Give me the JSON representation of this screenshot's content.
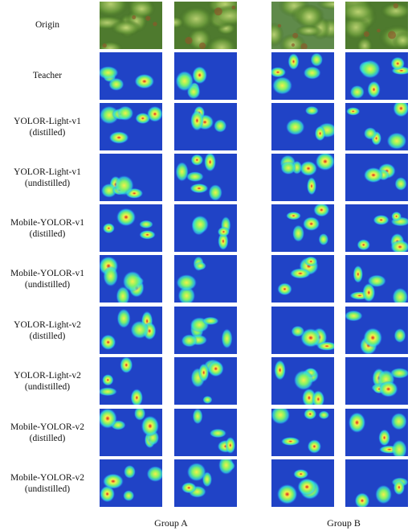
{
  "panels": {
    "a": "A",
    "b": "B"
  },
  "rows": [
    {
      "label_line1": "Origin",
      "label_line2": ""
    },
    {
      "label_line1": "Teacher",
      "label_line2": ""
    },
    {
      "label_line1": "YOLOR-Light-v1",
      "label_line2": "(distilled)"
    },
    {
      "label_line1": "YOLOR-Light-v1",
      "label_line2": "(undistilled)"
    },
    {
      "label_line1": "Mobile-YOLOR-v1",
      "label_line2": "(distilled)"
    },
    {
      "label_line1": "Mobile-YOLOR-v1",
      "label_line2": "(undistilled)"
    },
    {
      "label_line1": "YOLOR-Light-v2",
      "label_line2": "(distilled)"
    },
    {
      "label_line1": "YOLOR-Light-v2",
      "label_line2": "(undistilled)"
    },
    {
      "label_line1": "Mobile-YOLOR-v2",
      "label_line2": "(distilled)"
    },
    {
      "label_line1": "Mobile-YOLOR-v2",
      "label_line2": "(undistilled)"
    }
  ],
  "groups": {
    "a_caption": "Group A",
    "b_caption": "Group B"
  },
  "colors": {
    "heat_bg": "#1a2ea8",
    "heat_blue": "#2f6bff",
    "heat_cyan": "#2fe0e0",
    "heat_green": "#7df26a",
    "heat_yellow": "#f5f04a",
    "heat_red": "#d81f1f",
    "leaf_green": "#6a9a3a"
  }
}
